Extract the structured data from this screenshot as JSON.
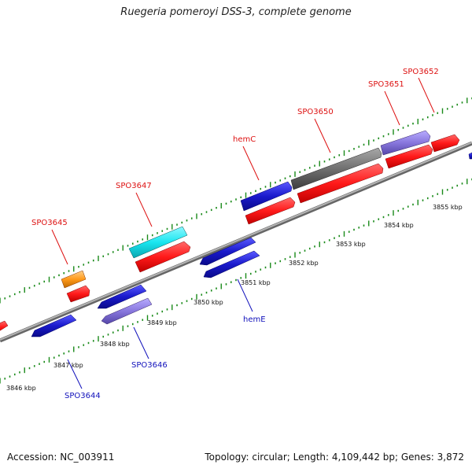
{
  "header": {
    "title": "Ruegeria pomeroyi DSS-3, complete genome"
  },
  "footer": {
    "accession": "Accession: NC_003911",
    "summary": "Topology: circular; Length: 4,109,442 bp; Genes: 3,872"
  },
  "colors": {
    "backbone": "#8c8c8c",
    "forward_label": "#dd1111",
    "reverse_label": "#1111bb",
    "tick": "#1a8a1a",
    "red": "#ff1a1a",
    "blue": "#1a1acc",
    "cyan": "#19e6f0",
    "orange": "#ff9a1a",
    "lavender": "#8877dd",
    "gray": "#707070"
  },
  "scale_labels": [
    "3846 kbp",
    "3847 kbp",
    "3848 kbp",
    "3849 kbp",
    "3850 kbp",
    "3851 kbp",
    "3852 kbp",
    "3853 kbp",
    "3854 kbp",
    "3855 kbp"
  ],
  "gene_labels": {
    "forward": [
      "SPO3645",
      "SPO3647",
      "hemC",
      "SPO3650",
      "SPO3651",
      "SPO3652"
    ],
    "reverse": [
      "SPO3644",
      "SPO3646",
      "hemE"
    ]
  },
  "feature_colors": [
    "red",
    "blue",
    "orange",
    "red",
    "blue",
    "lavender",
    "cyan",
    "red",
    "blue",
    "blue",
    "blue",
    "red",
    "gray",
    "red",
    "lavender",
    "red",
    "red"
  ],
  "icons": {
    "feature_arrow": "arrow-gene-feature-icon"
  }
}
